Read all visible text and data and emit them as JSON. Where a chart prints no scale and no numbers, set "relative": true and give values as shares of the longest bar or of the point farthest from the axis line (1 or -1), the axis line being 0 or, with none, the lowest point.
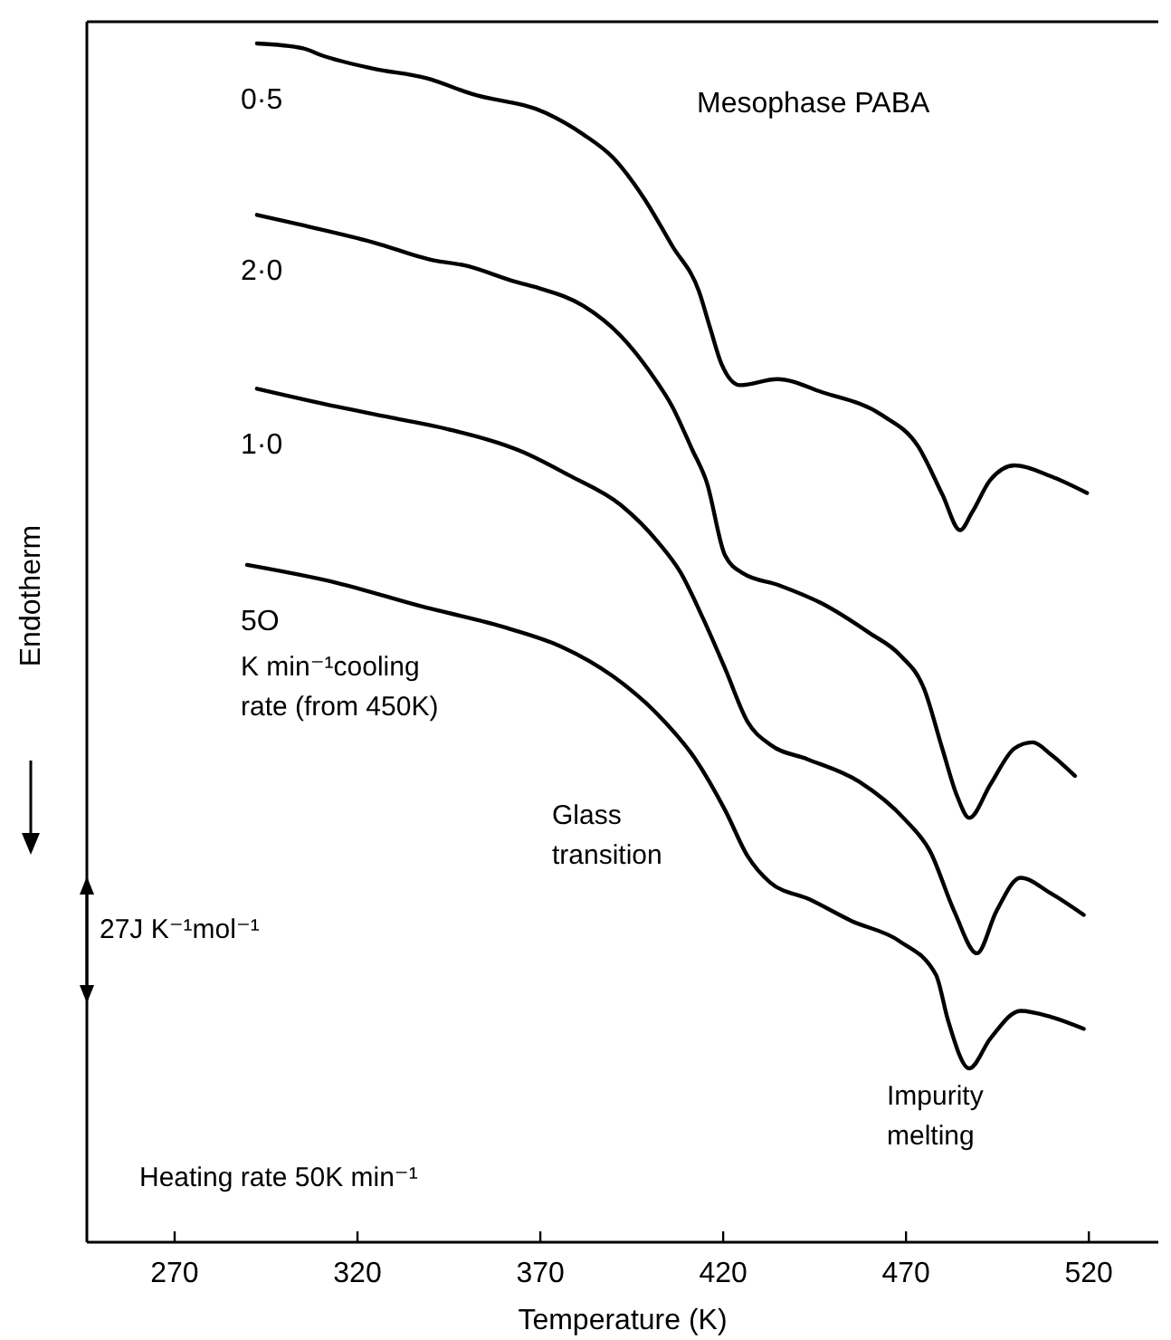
{
  "chart_data": {
    "type": "line",
    "title": "Mesophase PABA",
    "xlabel": "Temperature (K)",
    "ylabel": "Endotherm",
    "relative": true,
    "xlim": [
      246,
      539
    ],
    "xticks": [
      270,
      320,
      370,
      420,
      470,
      520
    ],
    "marker": "none",
    "line_style": "solid",
    "annotations": [
      "K min⁻¹cooling\nrate (from 450K)",
      "Glass\ntransition",
      "Impurity\nmelting",
      "Heating rate 50K min⁻¹",
      "27J K⁻¹mol⁻¹"
    ],
    "series": [
      {
        "name": "0·5",
        "color": "#000000",
        "x": [
          292.5,
          305.1,
          310.3,
          324.4,
          338.9,
          351.2,
          371.5,
          381.8,
          389.8,
          398.1,
          406.1,
          413.4,
          416.5,
          419.5,
          424.6,
          434.8,
          447.1,
          463.4,
          473.3,
          479.9,
          484.8,
          488.1,
          493.1,
          499.7,
          509.6,
          519.5
        ],
        "values": [
          1.0,
          0.996,
          0.99,
          0.979,
          0.971,
          0.958,
          0.942,
          0.924,
          0.905,
          0.872,
          0.831,
          0.793,
          0.762,
          0.733,
          0.715,
          0.72,
          0.709,
          0.69,
          0.664,
          0.624,
          0.594,
          0.609,
          0.636,
          0.648,
          0.639,
          0.625
        ]
      },
      {
        "name": "2·0",
        "color": "#000000",
        "x": [
          292.5,
          304.1,
          324.4,
          340.9,
          349.1,
          363.4,
          369.5,
          381.8,
          392,
          400.2,
          406.1,
          411.4,
          415.5,
          420.5,
          425.4,
          435.3,
          446.9,
          460.1,
          468.3,
          474.9,
          479.9,
          484,
          487.3,
          493.1,
          499.7,
          504.6,
          509.6,
          516.2
        ],
        "values": [
          0.857,
          0.849,
          0.834,
          0.819,
          0.815,
          0.801,
          0.796,
          0.781,
          0.756,
          0.725,
          0.697,
          0.662,
          0.634,
          0.573,
          0.558,
          0.548,
          0.533,
          0.508,
          0.49,
          0.462,
          0.412,
          0.372,
          0.354,
          0.382,
          0.412,
          0.417,
          0.407,
          0.389
        ]
      },
      {
        "name": "1·0",
        "color": "#000000",
        "x": [
          292.5,
          314.4,
          330.7,
          345,
          365.4,
          377.7,
          392,
          402.2,
          408.3,
          414.4,
          420.6,
          426.7,
          432.9,
          443,
          457.3,
          469.6,
          476.6,
          483.2,
          489.4,
          494.7,
          501.3,
          509.6,
          518.6
        ],
        "values": [
          0.712,
          0.697,
          0.687,
          0.678,
          0.659,
          0.64,
          0.615,
          0.584,
          0.559,
          0.521,
          0.478,
          0.434,
          0.415,
          0.403,
          0.384,
          0.353,
          0.326,
          0.276,
          0.241,
          0.276,
          0.304,
          0.291,
          0.273
        ]
      },
      {
        "name": "5O",
        "color": "#000000",
        "x": [
          289.8,
          314.4,
          336.8,
          361.3,
          375.6,
          389.9,
          402.2,
          412.4,
          420.6,
          426.7,
          432.9,
          443.6,
          455.1,
          468.3,
          478.2,
          481.5,
          487.3,
          493.1,
          501.3,
          509.6,
          518.6
        ],
        "values": [
          0.565,
          0.55,
          0.531,
          0.512,
          0.497,
          0.472,
          0.44,
          0.403,
          0.36,
          0.322,
          0.3,
          0.286,
          0.268,
          0.251,
          0.223,
          0.185,
          0.145,
          0.17,
          0.193,
          0.188,
          0.178
        ]
      }
    ]
  }
}
